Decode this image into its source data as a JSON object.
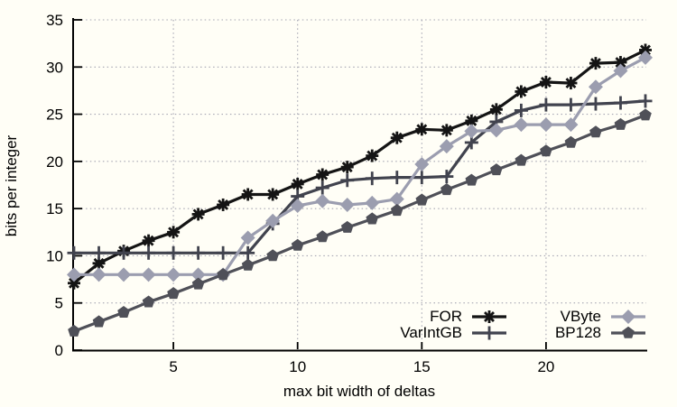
{
  "page": {
    "background": "#fffef6"
  },
  "chart_data": {
    "type": "line",
    "title": "",
    "xlabel": "max bit width of deltas",
    "ylabel": "bits per integer",
    "xlim": [
      1,
      24.3
    ],
    "ylim": [
      0,
      35
    ],
    "xticks": [
      5,
      10,
      15,
      20
    ],
    "yticks": [
      0,
      5,
      10,
      15,
      20,
      25,
      30,
      35
    ],
    "grid": "dotted-major",
    "grid_color": "#a5a5b2",
    "axis_color": "#000000",
    "x": [
      1,
      2,
      3,
      4,
      5,
      6,
      7,
      8,
      9,
      10,
      11,
      12,
      13,
      14,
      15,
      16,
      17,
      18,
      19,
      20,
      21,
      22,
      23,
      24
    ],
    "series": [
      {
        "name": "FOR",
        "marker": "star",
        "color": "#141414",
        "values": [
          7.1,
          9.2,
          10.5,
          11.6,
          12.5,
          14.4,
          15.4,
          16.5,
          16.5,
          17.6,
          18.6,
          19.4,
          20.6,
          22.5,
          23.4,
          23.3,
          24.3,
          25.5,
          27.4,
          28.4,
          28.3,
          30.4,
          30.5,
          31.8
        ]
      },
      {
        "name": "VarIntGB",
        "marker": "plus",
        "color": "#41434e",
        "values": [
          10.3,
          10.3,
          10.3,
          10.3,
          10.3,
          10.3,
          10.3,
          10.3,
          13.4,
          16.3,
          17.2,
          18.0,
          18.2,
          18.3,
          18.3,
          18.4,
          22.0,
          24.2,
          25.4,
          26.0,
          26.0,
          26.1,
          26.2,
          26.4
        ]
      },
      {
        "name": "VByte",
        "marker": "diamond",
        "color": "#9b9daf",
        "values": [
          8.0,
          8.0,
          8.0,
          8.0,
          8.0,
          8.0,
          8.0,
          11.9,
          13.7,
          15.3,
          15.8,
          15.4,
          15.6,
          16.0,
          19.7,
          21.6,
          23.2,
          23.3,
          23.9,
          23.9,
          23.9,
          27.9,
          29.6,
          31.0
        ]
      },
      {
        "name": "BP128",
        "marker": "pentagon",
        "color": "#4f5058",
        "values": [
          2.0,
          3.0,
          4.0,
          5.1,
          6.0,
          7.0,
          8.0,
          9.0,
          10.0,
          11.1,
          12.0,
          13.0,
          13.9,
          14.8,
          15.9,
          17.0,
          18.0,
          19.1,
          20.1,
          21.1,
          22.0,
          23.1,
          23.9,
          24.9
        ]
      }
    ],
    "legend": {
      "position": "inside-bottom-right",
      "rows": [
        [
          "FOR",
          "VByte"
        ],
        [
          "VarIntGB",
          "BP128"
        ]
      ]
    }
  }
}
